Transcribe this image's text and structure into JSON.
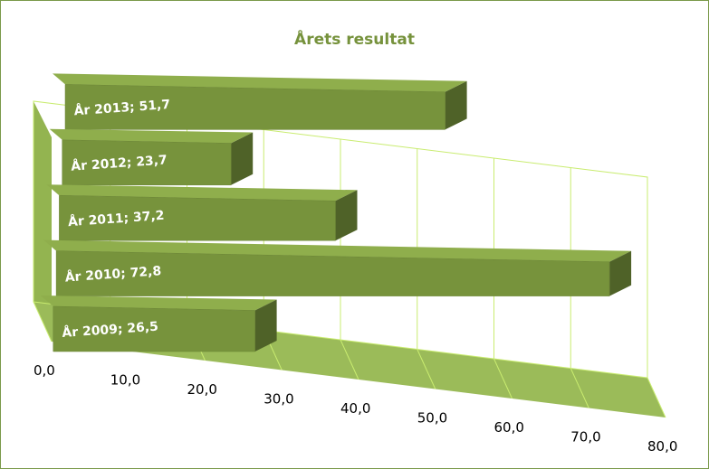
{
  "chart_data": {
    "type": "bar",
    "orientation": "horizontal",
    "style": "3d",
    "title": "Årets resultat",
    "categories": [
      "År 2009",
      "År 2010",
      "År 2011",
      "År 2012",
      "År 2013"
    ],
    "values": [
      26.5,
      72.8,
      37.2,
      23.7,
      51.7
    ],
    "data_labels": [
      "År 2009; 26,5",
      "År 2010; 72,8",
      "År 2011; 37,2",
      "År 2012; 23,7",
      "År 2013; 51,7"
    ],
    "xlim": [
      0,
      80
    ],
    "x_ticks": [
      "0,0",
      "10,0",
      "20,0",
      "30,0",
      "40,0",
      "50,0",
      "60,0",
      "70,0",
      "80,0"
    ],
    "grid": true,
    "legend": "none",
    "colors": {
      "bar_front": "#77933c",
      "bar_top": "#8fae4c",
      "bar_side": "#4f6228",
      "floor": "#9bbb59",
      "wall": "#93b450",
      "gridline": "#c9ec70",
      "title": "#76923c"
    }
  }
}
